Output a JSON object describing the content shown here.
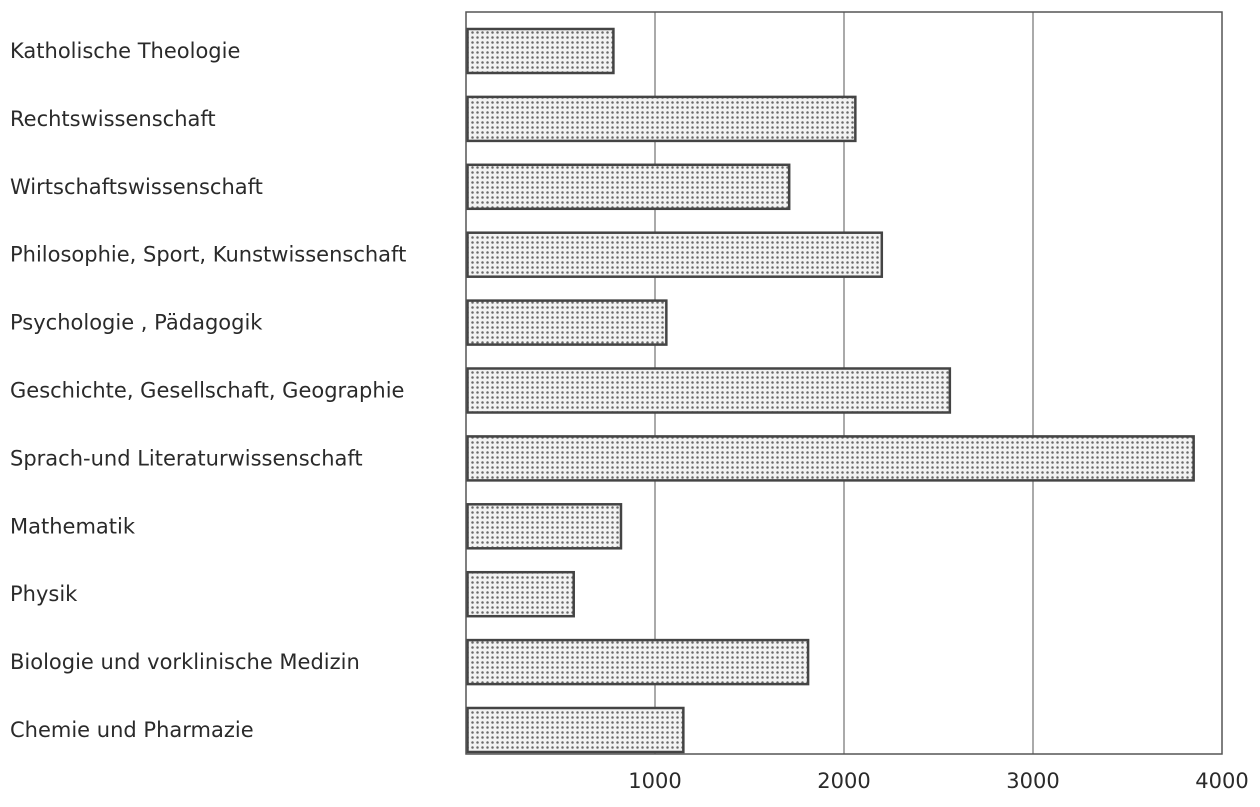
{
  "chart_data": {
    "type": "bar",
    "orientation": "horizontal",
    "categories": [
      "Katholische Theologie",
      "Rechtswissenschaft",
      "Wirtschaftswissenschaft",
      "Philosophie, Sport, Kunstwissenschaft",
      "Psychologie , Pädagogik",
      "Geschichte, Gesellschaft, Geographie",
      "Sprach-und Literaturwissenschaft",
      "Mathematik",
      "Physik",
      "Biologie und vorklinische Medizin",
      "Chemie und Pharmazie"
    ],
    "values": [
      780,
      2060,
      1710,
      2200,
      1060,
      2560,
      3850,
      820,
      570,
      1810,
      1150
    ],
    "xlim": [
      0,
      4000
    ],
    "xticks": [
      1000,
      2000,
      3000,
      4000
    ],
    "xtick_labels": [
      "1000",
      "2000",
      "3000",
      "4000"
    ],
    "grid": "vertical",
    "bar_fill": "dotted",
    "title": "",
    "xlabel": "",
    "ylabel": ""
  }
}
